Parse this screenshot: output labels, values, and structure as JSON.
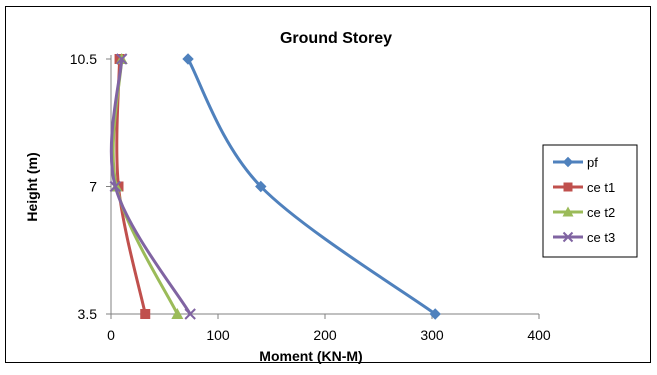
{
  "chart_data": {
    "type": "line",
    "title": "Ground Storey",
    "xlabel": "Moment (KN-M)",
    "ylabel": "Height (m)",
    "xlim": [
      0,
      400
    ],
    "ylim": [
      3.5,
      10.5
    ],
    "xticks": [
      "0",
      "100",
      "200",
      "300",
      "400"
    ],
    "yticks": [
      "3.5",
      "7",
      "10.5"
    ],
    "grid": false,
    "legend_position": "right",
    "series": [
      {
        "name": "pf",
        "color": "#4f81bd",
        "marker": "diamond",
        "points": [
          {
            "x": 72,
            "y": 10.5
          },
          {
            "x": 140,
            "y": 7
          },
          {
            "x": 303,
            "y": 3.5
          }
        ]
      },
      {
        "name": "ce t1",
        "color": "#c0504d",
        "marker": "square",
        "points": [
          {
            "x": 8,
            "y": 10.5
          },
          {
            "x": 7,
            "y": 7
          },
          {
            "x": 32,
            "y": 3.5
          }
        ]
      },
      {
        "name": "ce t2",
        "color": "#9bbb59",
        "marker": "triangle",
        "points": [
          {
            "x": 10,
            "y": 10.5
          },
          {
            "x": 5,
            "y": 7
          },
          {
            "x": 62,
            "y": 3.5
          }
        ]
      },
      {
        "name": "ce t3",
        "color": "#8064a2",
        "marker": "x",
        "points": [
          {
            "x": 10,
            "y": 10.5
          },
          {
            "x": 4,
            "y": 7
          },
          {
            "x": 74,
            "y": 3.5
          }
        ]
      }
    ]
  }
}
